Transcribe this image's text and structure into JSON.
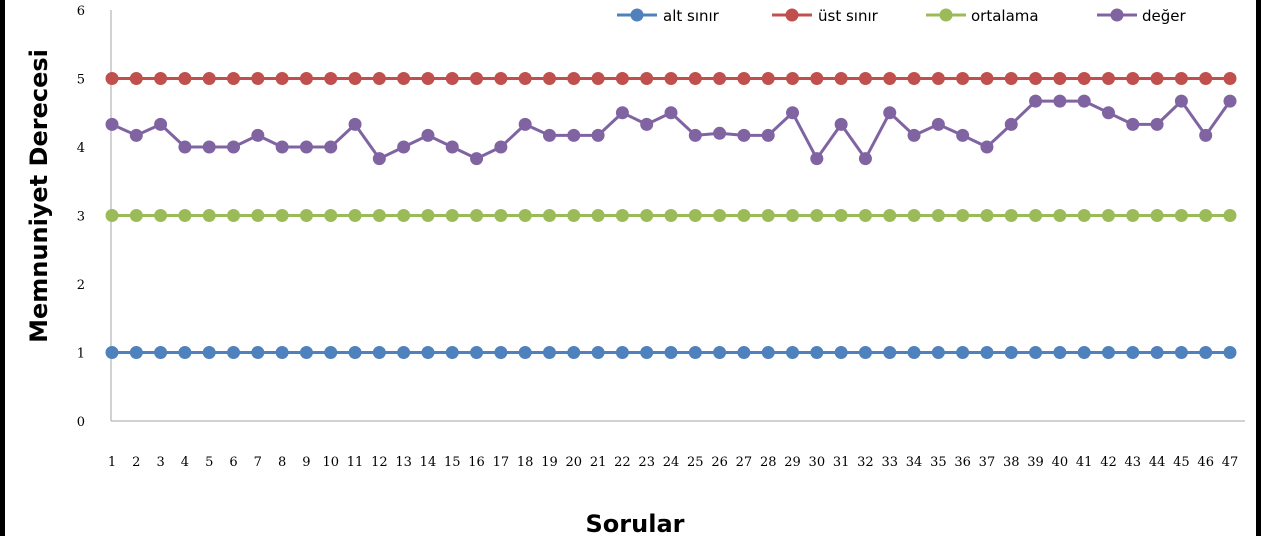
{
  "chart_data": {
    "type": "line",
    "title": "",
    "xlabel": "Sorular",
    "ylabel": "Memnuniyet Derecesi",
    "ylim": [
      0,
      6
    ],
    "yticks": [
      "0",
      "1",
      "2",
      "3",
      "4",
      "5",
      "6"
    ],
    "grid": false,
    "legend_position": "top-right",
    "categories": [
      "1",
      "2",
      "3",
      "4",
      "5",
      "6",
      "7",
      "8",
      "9",
      "10",
      "11",
      "12",
      "13",
      "14",
      "15",
      "16",
      "17",
      "18",
      "19",
      "20",
      "21",
      "22",
      "23",
      "24",
      "25",
      "26",
      "27",
      "28",
      "29",
      "30",
      "31",
      "32",
      "33",
      "34",
      "35",
      "36",
      "37",
      "38",
      "39",
      "40",
      "41",
      "42",
      "43",
      "44",
      "45",
      "46",
      "47"
    ],
    "series": [
      {
        "name": "alt sınır",
        "color": "#4F81BD",
        "values": [
          1,
          1,
          1,
          1,
          1,
          1,
          1,
          1,
          1,
          1,
          1,
          1,
          1,
          1,
          1,
          1,
          1,
          1,
          1,
          1,
          1,
          1,
          1,
          1,
          1,
          1,
          1,
          1,
          1,
          1,
          1,
          1,
          1,
          1,
          1,
          1,
          1,
          1,
          1,
          1,
          1,
          1,
          1,
          1,
          1,
          1,
          1
        ]
      },
      {
        "name": "üst sınır",
        "color": "#C0504D",
        "values": [
          5,
          5,
          5,
          5,
          5,
          5,
          5,
          5,
          5,
          5,
          5,
          5,
          5,
          5,
          5,
          5,
          5,
          5,
          5,
          5,
          5,
          5,
          5,
          5,
          5,
          5,
          5,
          5,
          5,
          5,
          5,
          5,
          5,
          5,
          5,
          5,
          5,
          5,
          5,
          5,
          5,
          5,
          5,
          5,
          5,
          5,
          5
        ]
      },
      {
        "name": "ortalama",
        "color": "#9BBB59",
        "values": [
          3,
          3,
          3,
          3,
          3,
          3,
          3,
          3,
          3,
          3,
          3,
          3,
          3,
          3,
          3,
          3,
          3,
          3,
          3,
          3,
          3,
          3,
          3,
          3,
          3,
          3,
          3,
          3,
          3,
          3,
          3,
          3,
          3,
          3,
          3,
          3,
          3,
          3,
          3,
          3,
          3,
          3,
          3,
          3,
          3,
          3,
          3
        ]
      },
      {
        "name": "değer",
        "color": "#8064A2",
        "values": [
          4.33,
          4.17,
          4.33,
          4.0,
          4.0,
          4.0,
          4.17,
          4.0,
          4.0,
          4.0,
          4.33,
          3.83,
          4.0,
          4.17,
          4.0,
          3.83,
          4.0,
          4.33,
          4.17,
          4.17,
          4.17,
          4.5,
          4.33,
          4.5,
          4.17,
          4.2,
          4.17,
          4.17,
          4.5,
          3.83,
          4.33,
          3.83,
          4.5,
          4.17,
          4.33,
          4.17,
          4.0,
          4.33,
          4.67,
          4.67,
          4.67,
          4.5,
          4.33,
          4.33,
          4.67,
          4.17,
          4.67
        ]
      }
    ]
  }
}
